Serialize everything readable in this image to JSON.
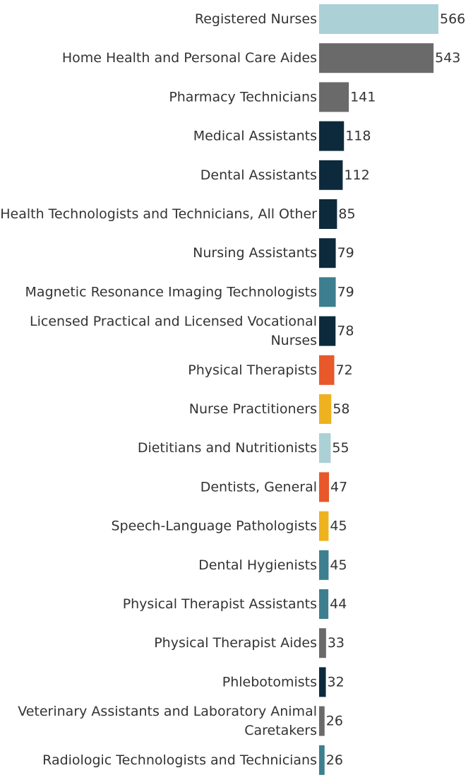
{
  "chart_data": {
    "type": "bar",
    "orientation": "horizontal",
    "title": "",
    "xlabel": "",
    "ylabel": "",
    "xlim": [
      0,
      566
    ],
    "grid": false,
    "categories": [
      [
        "Registered Nurses"
      ],
      [
        "Home Health and Personal Care Aides"
      ],
      [
        "Pharmacy Technicians"
      ],
      [
        "Medical Assistants"
      ],
      [
        "Dental Assistants"
      ],
      [
        "Health Technologists and Technicians, All Other"
      ],
      [
        "Nursing Assistants"
      ],
      [
        "Magnetic Resonance Imaging Technologists"
      ],
      [
        "Licensed Practical and Licensed Vocational",
        "Nurses"
      ],
      [
        "Physical Therapists"
      ],
      [
        "Nurse Practitioners"
      ],
      [
        "Dietitians and Nutritionists"
      ],
      [
        "Dentists, General"
      ],
      [
        "Speech-Language Pathologists"
      ],
      [
        "Dental Hygienists"
      ],
      [
        "Physical Therapist Assistants"
      ],
      [
        "Physical Therapist Aides"
      ],
      [
        "Phlebotomists"
      ],
      [
        "Veterinary Assistants and Laboratory Animal",
        "Caretakers"
      ],
      [
        "Radiologic Technologists and Technicians"
      ]
    ],
    "values": [
      566,
      543,
      141,
      118,
      112,
      85,
      79,
      79,
      78,
      72,
      58,
      55,
      47,
      45,
      45,
      44,
      33,
      32,
      26,
      26
    ],
    "colors": [
      "#abd0d6",
      "#6a6a6a",
      "#6a6a6a",
      "#0c2a3b",
      "#0c2a3b",
      "#0c2a3b",
      "#0c2a3b",
      "#3d7f8f",
      "#0c2a3b",
      "#e8582a",
      "#eeb21f",
      "#abd0d6",
      "#e8582a",
      "#eeb21f",
      "#3d7f8f",
      "#3d7f8f",
      "#6a6a6a",
      "#0c2a3b",
      "#6a6a6a",
      "#3d7f8f"
    ]
  }
}
